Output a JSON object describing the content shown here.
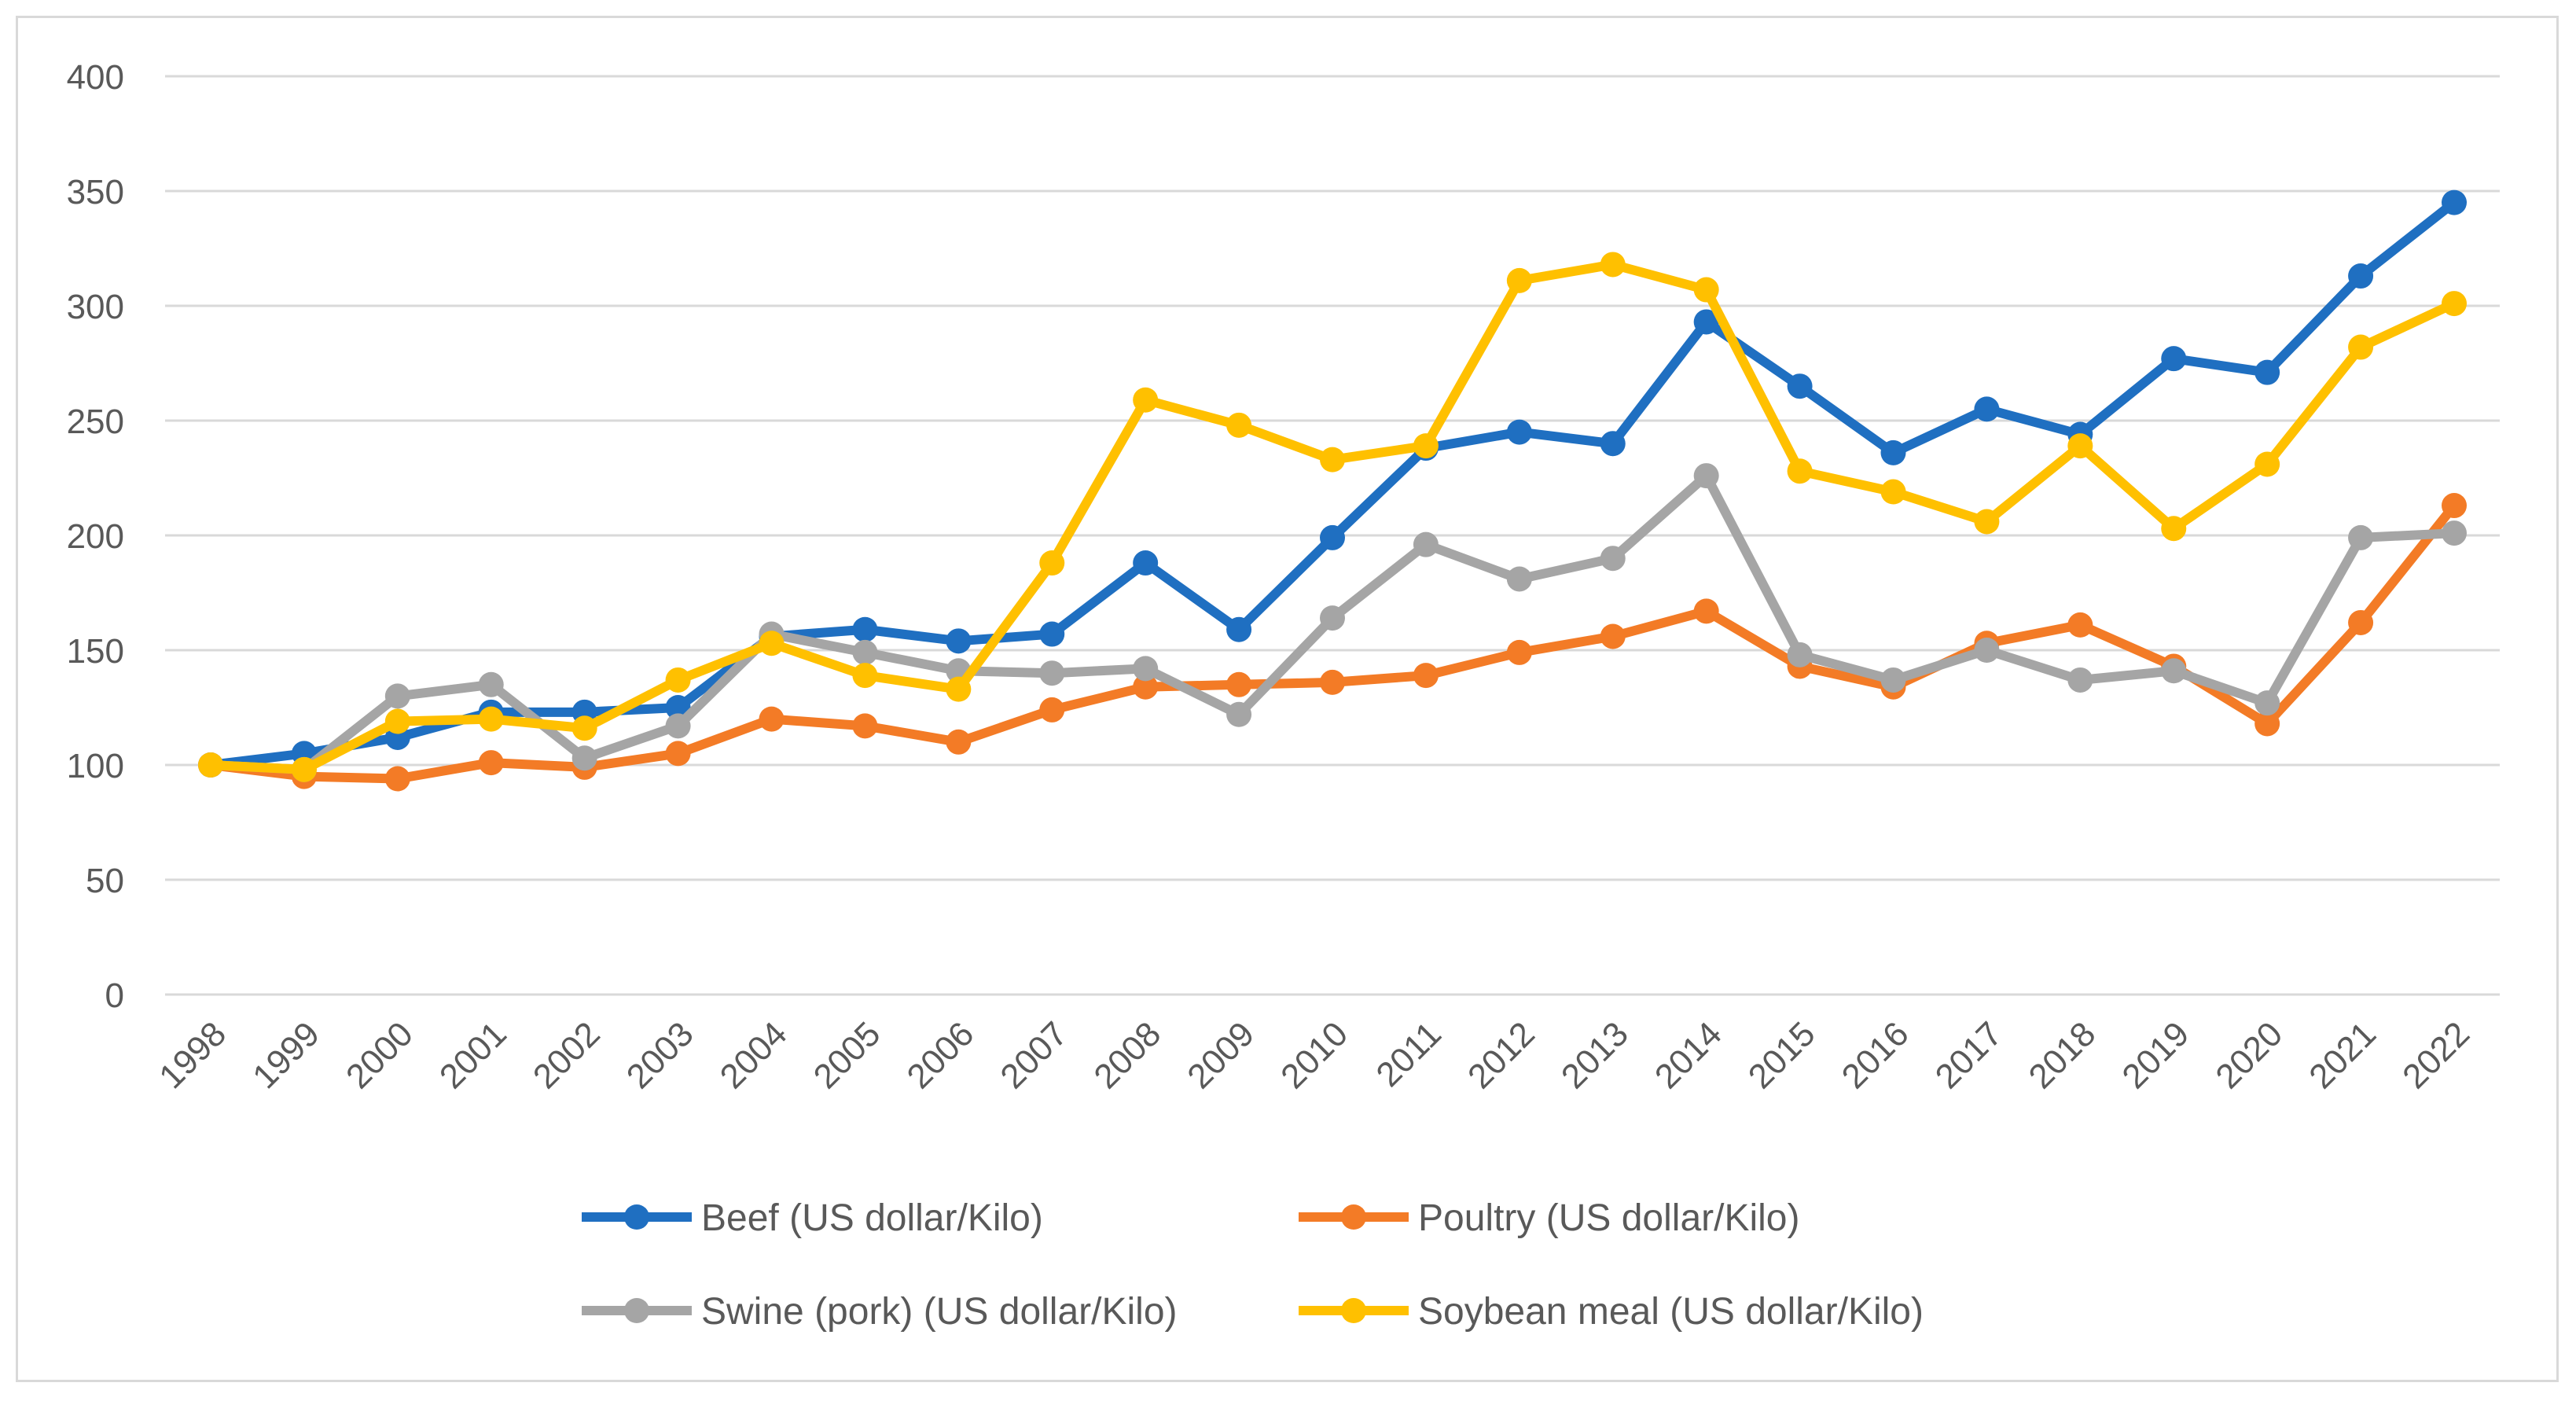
{
  "chart_data": {
    "type": "line",
    "title": "",
    "xlabel": "",
    "ylabel": "",
    "ylim": [
      0,
      400
    ],
    "yticks": [
      0,
      50,
      100,
      150,
      200,
      250,
      300,
      350,
      400
    ],
    "grid": true,
    "legend_position": "bottom",
    "x": [
      "1998",
      "1999",
      "2000",
      "2001",
      "2002",
      "2003",
      "2004",
      "2005",
      "2006",
      "2007",
      "2008",
      "2009",
      "2010",
      "2011",
      "2012",
      "2013",
      "2014",
      "2015",
      "2016",
      "2017",
      "2018",
      "2019",
      "2020",
      "2021",
      "2022"
    ],
    "series": [
      {
        "name": "Beef (US dollar/Kilo)",
        "color": "#1f6fc1",
        "values": [
          100,
          105,
          112,
          123,
          123,
          125,
          156,
          159,
          154,
          157,
          188,
          159,
          199,
          238,
          245,
          240,
          293,
          265,
          236,
          255,
          244,
          277,
          271,
          313,
          345
        ]
      },
      {
        "name": "Poultry (US dollar/Kilo)",
        "color": "#f37b26",
        "values": [
          100,
          95,
          94,
          101,
          99,
          105,
          120,
          117,
          110,
          124,
          134,
          135,
          136,
          139,
          149,
          156,
          167,
          143,
          134,
          153,
          161,
          143,
          118,
          162,
          213
        ]
      },
      {
        "name": "Swine (pork) (US dollar/Kilo)",
        "color": "#a5a5a5",
        "values": [
          100,
          98,
          130,
          135,
          103,
          117,
          157,
          149,
          141,
          140,
          142,
          122,
          164,
          196,
          181,
          190,
          226,
          148,
          137,
          150,
          137,
          141,
          127,
          199,
          201
        ]
      },
      {
        "name": "Soybean meal (US dollar/Kilo)",
        "color": "#ffc000",
        "values": [
          100,
          98,
          119,
          120,
          116,
          137,
          153,
          139,
          133,
          188,
          259,
          248,
          233,
          239,
          311,
          318,
          307,
          228,
          219,
          206,
          239,
          203,
          231,
          282,
          301
        ]
      }
    ]
  }
}
